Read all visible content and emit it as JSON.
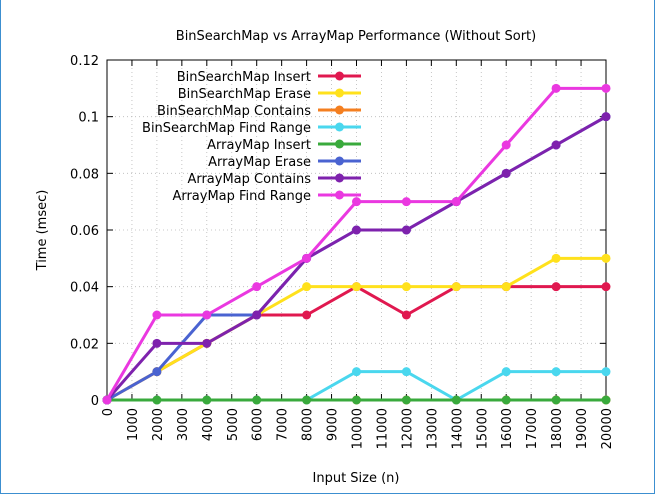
{
  "chart_data": {
    "type": "line",
    "title": "BinSearchMap vs ArrayMap Performance (Without Sort)",
    "xlabel": "Input Size (n)",
    "ylabel": "Time (msec)",
    "xlim": [
      0,
      20000
    ],
    "ylim": [
      0,
      0.12
    ],
    "x_ticks": [
      "0",
      "1000",
      "2000",
      "3000",
      "4000",
      "5000",
      "6000",
      "7000",
      "8000",
      "9000",
      "10000",
      "11000",
      "12000",
      "13000",
      "14000",
      "15000",
      "16000",
      "17000",
      "18000",
      "19000",
      "20000"
    ],
    "y_ticks": [
      "0",
      "0.02",
      "0.04",
      "0.06",
      "0.08",
      "0.1",
      "0.12"
    ],
    "grid": true,
    "legend_position": "top-left",
    "x": [
      0,
      2000,
      4000,
      6000,
      8000,
      10000,
      12000,
      14000,
      16000,
      18000,
      20000
    ],
    "series": [
      {
        "name": "BinSearchMap Insert",
        "color": "#e0184f",
        "values": [
          0,
          0.01,
          0.02,
          0.03,
          0.03,
          0.04,
          0.03,
          0.04,
          0.04,
          0.04,
          0.04
        ]
      },
      {
        "name": "BinSearchMap Erase",
        "color": "#ffe11c",
        "values": [
          0,
          0.01,
          0.02,
          0.03,
          0.04,
          0.04,
          0.04,
          0.04,
          0.04,
          0.05,
          0.05
        ]
      },
      {
        "name": "BinSearchMap Contains",
        "color": "#f47f20",
        "values": [
          0,
          0,
          0,
          0,
          0,
          0,
          0,
          0,
          0,
          0,
          0
        ]
      },
      {
        "name": "BinSearchMap Find Range",
        "color": "#4ad7ee",
        "values": [
          0,
          0,
          0,
          0,
          0,
          0.01,
          0.01,
          0,
          0.01,
          0.01,
          0.01
        ]
      },
      {
        "name": "ArrayMap Insert",
        "color": "#39aa3c",
        "values": [
          0,
          0,
          0,
          0,
          0,
          0,
          0,
          0,
          0,
          0,
          0
        ]
      },
      {
        "name": "ArrayMap Erase",
        "color": "#4a63d1",
        "values": [
          0,
          0.01,
          0.03,
          0.03,
          0.05,
          0.06,
          0.06,
          0.07,
          0.08,
          0.09,
          0.1
        ]
      },
      {
        "name": "ArrayMap Contains",
        "color": "#7e22ad",
        "values": [
          0,
          0.02,
          0.02,
          0.03,
          0.05,
          0.06,
          0.06,
          0.07,
          0.08,
          0.09,
          0.1
        ]
      },
      {
        "name": "ArrayMap Find Range",
        "color": "#ea38e0",
        "values": [
          0,
          0.03,
          0.03,
          0.04,
          0.05,
          0.07,
          0.07,
          0.07,
          0.09,
          0.11,
          0.11
        ]
      }
    ]
  }
}
